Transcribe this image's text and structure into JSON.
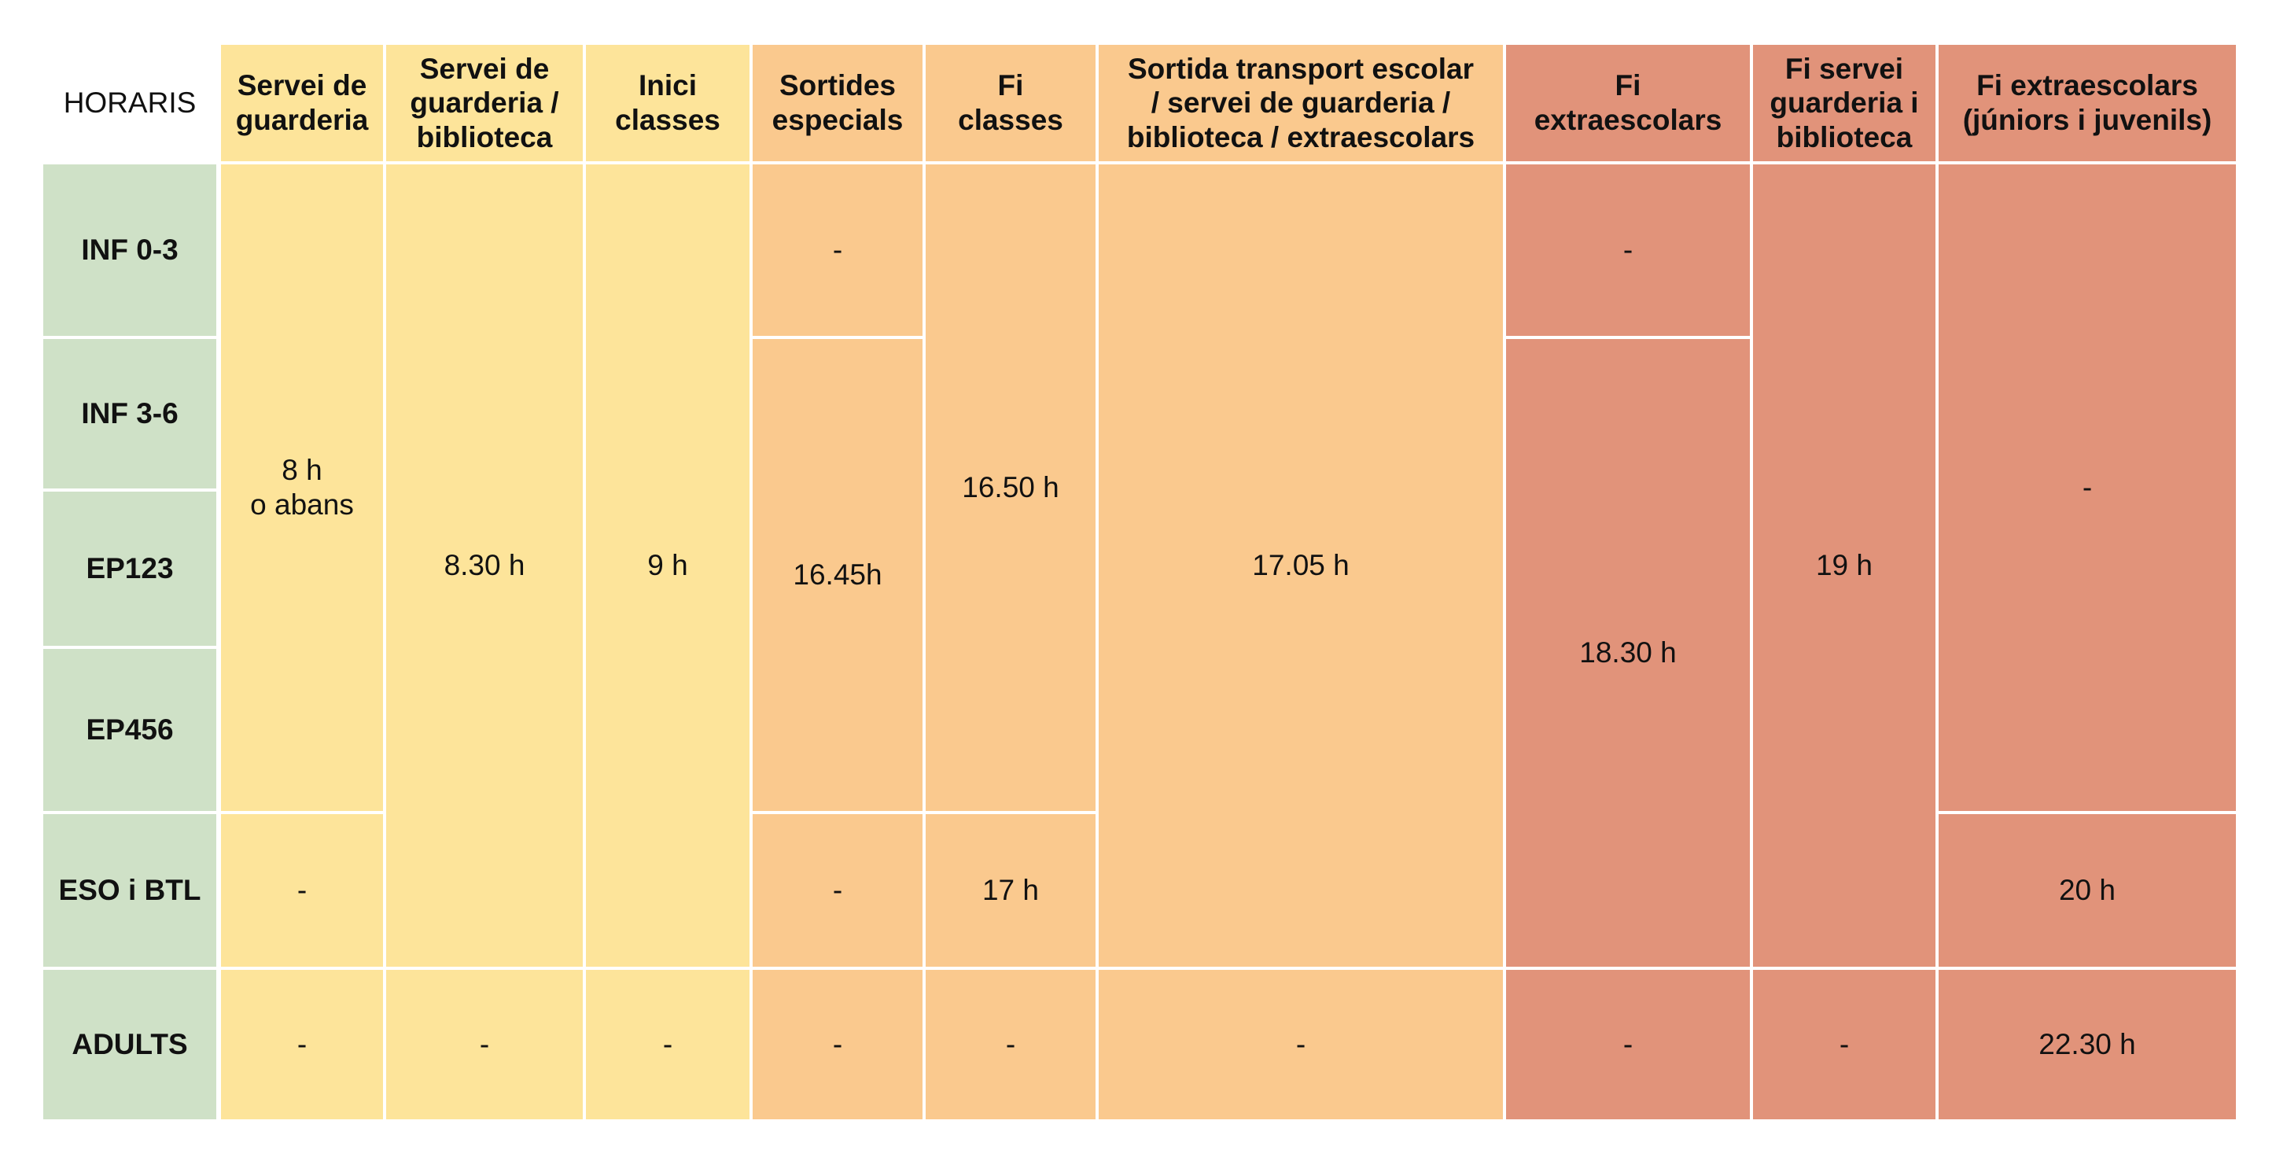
{
  "corner_label": "HORARIS",
  "headers": [
    "Servei de\nguarderia",
    "Servei de\nguarderia /\nbiblioteca",
    "Inici\nclasses",
    "Sortides\nespecials",
    "Fi\nclasses",
    "Sortida transport escolar\n/ servei de guarderia /\nbiblioteca / extraescolars",
    "Fi\nextraescolars",
    "Fi servei\nguarderia i\nbiblioteca",
    "Fi extraescolars\n(júniors i juvenils)"
  ],
  "rows": [
    "INF 0-3",
    "INF 3-6",
    "EP123",
    "EP456",
    "ESO i BTL",
    "ADULTS"
  ],
  "cells": {
    "c1_r0_3": "8 h\no abans",
    "c1_r4": "-",
    "c1_r5": "-",
    "c2_r0_4": "8.30 h",
    "c2_r5": "-",
    "c3_r0_4": "9 h",
    "c3_r5": "-",
    "c4_r0": "-",
    "c4_r1_3": "16.45h",
    "c4_r4": "-",
    "c4_r5": "-",
    "c5_r0_3": "16.50 h",
    "c5_r4": "17 h",
    "c5_r5": "-",
    "c6_r0_4": "17.05 h",
    "c6_r5": "-",
    "c7_r0": "-",
    "c7_r1_4": "18.30 h",
    "c7_r5": "-",
    "c8_r0_4": "19 h",
    "c8_r5": "-",
    "c9_r0_3": "-",
    "c9_r4": "20 h",
    "c9_r5": "22.30 h"
  },
  "colors": {
    "yellow": "#fde49a",
    "orange": "#fac98e",
    "red": "#e1937a",
    "green": "#cfe1c7"
  }
}
